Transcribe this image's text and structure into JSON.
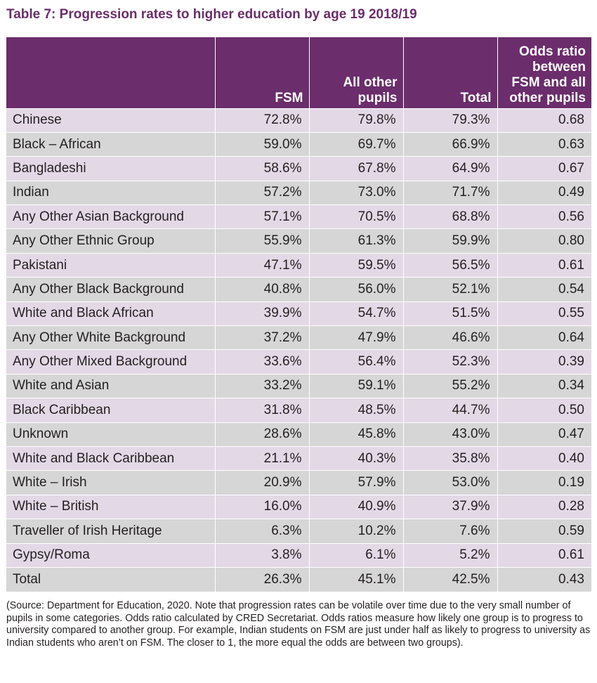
{
  "title": "Table 7: Progression rates to higher education by age 19 2018/19",
  "columns": {
    "group": "",
    "fsm": "FSM",
    "other_line1": "All other",
    "other_line2": "pupils",
    "total": "Total",
    "odds_line1": "Odds ratio",
    "odds_line2": "between",
    "odds_line3": "FSM and all",
    "odds_line4": "other pupils"
  },
  "rows": [
    {
      "group": "Chinese",
      "fsm": "72.8%",
      "other": "79.8%",
      "total": "79.3%",
      "odds": "0.68"
    },
    {
      "group": "Black – African",
      "fsm": "59.0%",
      "other": "69.7%",
      "total": "66.9%",
      "odds": "0.63"
    },
    {
      "group": "Bangladeshi",
      "fsm": "58.6%",
      "other": "67.8%",
      "total": "64.9%",
      "odds": "0.67"
    },
    {
      "group": "Indian",
      "fsm": "57.2%",
      "other": "73.0%",
      "total": "71.7%",
      "odds": "0.49"
    },
    {
      "group": "Any Other Asian Background",
      "fsm": "57.1%",
      "other": "70.5%",
      "total": "68.8%",
      "odds": "0.56"
    },
    {
      "group": "Any Other Ethnic Group",
      "fsm": "55.9%",
      "other": "61.3%",
      "total": "59.9%",
      "odds": "0.80"
    },
    {
      "group": "Pakistani",
      "fsm": "47.1%",
      "other": "59.5%",
      "total": "56.5%",
      "odds": "0.61"
    },
    {
      "group": "Any Other Black Background",
      "fsm": "40.8%",
      "other": "56.0%",
      "total": "52.1%",
      "odds": "0.54"
    },
    {
      "group": "White and Black African",
      "fsm": "39.9%",
      "other": "54.7%",
      "total": "51.5%",
      "odds": "0.55"
    },
    {
      "group": "Any Other White Background",
      "fsm": "37.2%",
      "other": "47.9%",
      "total": "46.6%",
      "odds": "0.64"
    },
    {
      "group": "Any Other Mixed Background",
      "fsm": "33.6%",
      "other": "56.4%",
      "total": "52.3%",
      "odds": "0.39"
    },
    {
      "group": "White and Asian",
      "fsm": "33.2%",
      "other": "59.1%",
      "total": "55.2%",
      "odds": "0.34"
    },
    {
      "group": "Black Caribbean",
      "fsm": "31.8%",
      "other": "48.5%",
      "total": "44.7%",
      "odds": "0.50"
    },
    {
      "group": "Unknown",
      "fsm": "28.6%",
      "other": "45.8%",
      "total": "43.0%",
      "odds": "0.47"
    },
    {
      "group": "White and Black Caribbean",
      "fsm": "21.1%",
      "other": "40.3%",
      "total": "35.8%",
      "odds": "0.40"
    },
    {
      "group": "White – Irish",
      "fsm": "20.9%",
      "other": "57.9%",
      "total": "53.0%",
      "odds": "0.19"
    },
    {
      "group": "White – British",
      "fsm": "16.0%",
      "other": "40.9%",
      "total": "37.9%",
      "odds": "0.28"
    },
    {
      "group": "Traveller of Irish Heritage",
      "fsm": "6.3%",
      "other": "10.2%",
      "total": "7.6%",
      "odds": "0.59"
    },
    {
      "group": "Gypsy/Roma",
      "fsm": "3.8%",
      "other": "6.1%",
      "total": "5.2%",
      "odds": "0.61"
    },
    {
      "group": "Total",
      "fsm": "26.3%",
      "other": "45.1%",
      "total": "42.5%",
      "odds": "0.43"
    }
  ],
  "note": "(Source: Department for Education, 2020. Note that progression rates can be volatile over time due to the very small number of pupils in some categories. Odds ratio calculated by CRED Secretariat. Odds ratios measure how likely one group is to progress to university compared to another group. For example, Indian students on FSM are just under half as likely to progress to university as Indian students who aren’t on FSM. The closer to 1, the more equal the odds are between two groups).",
  "colors": {
    "header_bg": "#6b2d6b",
    "title": "#6b2d6b",
    "row_odd": "#e3d9e6",
    "row_even": "#d6d6d6"
  }
}
